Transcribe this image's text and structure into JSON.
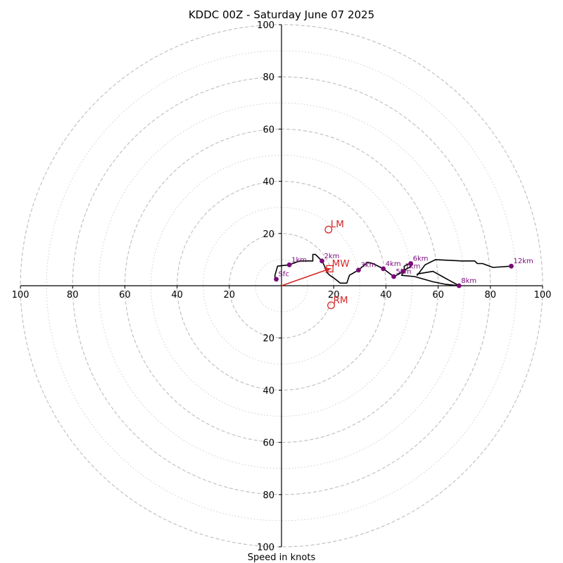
{
  "chart_data": {
    "type": "line",
    "title": "KDDC 00Z - Saturday June 07 2025",
    "xlabel": "Speed in knots",
    "ylabel": "",
    "xlim": [
      -100,
      100
    ],
    "ylim": [
      -100,
      100
    ],
    "x_ticks": [
      -100,
      -80,
      -60,
      -40,
      -20,
      20,
      40,
      60,
      80,
      100
    ],
    "x_tick_labels": [
      "100",
      "80",
      "60",
      "40",
      "20",
      "20",
      "40",
      "60",
      "80",
      "100"
    ],
    "y_ticks": [
      100,
      80,
      60,
      40,
      20,
      -20,
      -40,
      -60,
      -80,
      -100
    ],
    "y_tick_labels": [
      "100",
      "80",
      "60",
      "40",
      "20",
      "20",
      "40",
      "60",
      "80",
      "100"
    ],
    "grid": {
      "dashed_rings": [
        20,
        40,
        60,
        80,
        100
      ],
      "dotted_rings": [
        10,
        30,
        50,
        70,
        90
      ]
    },
    "colors": {
      "hodograph_line": "#000000",
      "height_markers": "#7a0a7a",
      "motion_markers": "#d62728",
      "grid": "#bdbdbd"
    },
    "hodograph_trace": [
      [
        -2.5,
        2.5
      ],
      [
        -2.5,
        4
      ],
      [
        -1.5,
        7.5
      ],
      [
        3,
        8
      ],
      [
        7,
        9.5
      ],
      [
        11,
        9.5
      ],
      [
        12,
        9.5
      ],
      [
        12,
        12
      ],
      [
        13,
        12
      ],
      [
        15.5,
        9.5
      ],
      [
        16.5,
        7.5
      ],
      [
        17.5,
        5
      ],
      [
        18.5,
        4
      ],
      [
        20,
        3
      ],
      [
        22.5,
        1
      ],
      [
        25,
        1
      ],
      [
        26,
        4
      ],
      [
        29.5,
        6
      ],
      [
        33,
        9
      ],
      [
        35,
        8.5
      ],
      [
        39,
        6.5
      ],
      [
        41,
        5
      ],
      [
        43,
        3.5
      ],
      [
        45,
        4.5
      ],
      [
        47,
        6
      ],
      [
        47,
        7.5
      ],
      [
        49,
        8.5
      ],
      [
        50,
        8.5
      ],
      [
        49,
        7
      ],
      [
        47,
        6
      ],
      [
        46,
        4
      ],
      [
        51,
        3.5
      ],
      [
        58,
        1.5
      ],
      [
        63,
        0.5
      ],
      [
        68,
        0
      ],
      [
        58,
        5.5
      ],
      [
        52,
        4.5
      ],
      [
        52,
        4
      ],
      [
        55,
        8
      ],
      [
        59,
        10
      ],
      [
        69,
        9.5
      ],
      [
        74,
        9.5
      ],
      [
        75,
        8.5
      ],
      [
        77,
        8.5
      ],
      [
        81,
        7
      ],
      [
        88,
        7.5
      ]
    ],
    "height_markers": [
      {
        "label": "Sfc",
        "u": -2,
        "v": 2.5
      },
      {
        "label": "1km",
        "u": 3,
        "v": 8
      },
      {
        "label": "2km",
        "u": 15.5,
        "v": 9.5
      },
      {
        "label": "3km",
        "u": 29.5,
        "v": 6
      },
      {
        "label": "4km",
        "u": 39,
        "v": 6.5
      },
      {
        "label": "5km",
        "u": 43,
        "v": 3.5
      },
      {
        "label": "6km",
        "u": 49.5,
        "v": 8.5
      },
      {
        "label": "7km",
        "u": 46.5,
        "v": 5.5
      },
      {
        "label": "8km",
        "u": 68,
        "v": 0
      },
      {
        "label": "12km",
        "u": 88,
        "v": 7.5
      }
    ],
    "storm_motion": [
      {
        "label": "LM",
        "u": 18,
        "v": 21.5,
        "marker": "circle"
      },
      {
        "label": "MW",
        "u": 18.5,
        "v": 6.5,
        "marker": "square"
      },
      {
        "label": "RM",
        "u": 19,
        "v": -7.5,
        "marker": "circle"
      }
    ],
    "mean_wind_arrow": {
      "from": [
        0,
        0
      ],
      "to": [
        18.5,
        6.5
      ]
    }
  }
}
